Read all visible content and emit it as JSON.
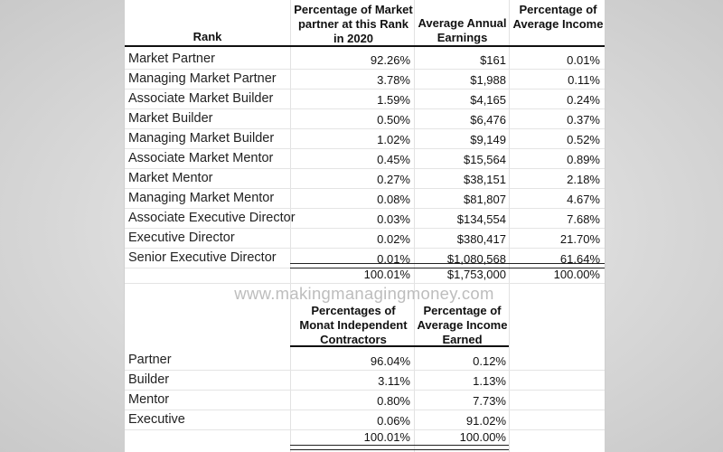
{
  "table1": {
    "headers": {
      "rank": "Rank",
      "percentage": "Percentage of Market partner at this Rank in 2020",
      "earnings": "Average Annual Earnings",
      "income": "Percentage of Average Income"
    },
    "rows": [
      {
        "rank": "Market Partner",
        "pct": "92.26%",
        "earnings": "$161",
        "income": "0.01%"
      },
      {
        "rank": "Managing Market Partner",
        "pct": "3.78%",
        "earnings": "$1,988",
        "income": "0.11%"
      },
      {
        "rank": "Associate Market Builder",
        "pct": "1.59%",
        "earnings": "$4,165",
        "income": "0.24%"
      },
      {
        "rank": "Market Builder",
        "pct": "0.50%",
        "earnings": "$6,476",
        "income": "0.37%"
      },
      {
        "rank": "Managing Market Builder",
        "pct": "1.02%",
        "earnings": "$9,149",
        "income": "0.52%"
      },
      {
        "rank": "Associate Market Mentor",
        "pct": "0.45%",
        "earnings": "$15,564",
        "income": "0.89%"
      },
      {
        "rank": "Market Mentor",
        "pct": "0.27%",
        "earnings": "$38,151",
        "income": "2.18%"
      },
      {
        "rank": "Managing Market Mentor",
        "pct": "0.08%",
        "earnings": "$81,807",
        "income": "4.67%"
      },
      {
        "rank": "Associate Executive Director",
        "pct": "0.03%",
        "earnings": "$134,554",
        "income": "7.68%"
      },
      {
        "rank": "Executive Director",
        "pct": "0.02%",
        "earnings": "$380,417",
        "income": "21.70%"
      },
      {
        "rank": "Senior Executive Director",
        "pct": "0.01%",
        "earnings": "$1,080,568",
        "income": "61.64%"
      }
    ],
    "totals": {
      "pct": "100.01%",
      "earnings": "$1,753,000",
      "income": "100.00%"
    }
  },
  "watermark": "www.makingmanagingmoney.com",
  "table2": {
    "headers": {
      "percentages": "Percentages of Monat Independent Contractors",
      "income": "Percentage of Average Income Earned"
    },
    "rows": [
      {
        "rank": "Partner",
        "pct": "96.04%",
        "income": "0.12%"
      },
      {
        "rank": "Builder",
        "pct": "3.11%",
        "income": "1.13%"
      },
      {
        "rank": "Mentor",
        "pct": "0.80%",
        "income": "7.73%"
      },
      {
        "rank": "Executive",
        "pct": "0.06%",
        "income": "91.02%"
      }
    ],
    "totals": {
      "pct": "100.01%",
      "income": "100.00%"
    }
  }
}
